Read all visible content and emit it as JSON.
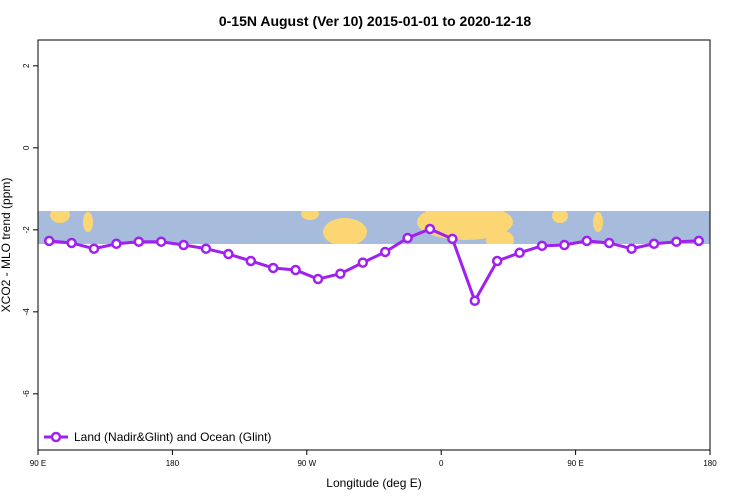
{
  "chart_data": {
    "type": "line",
    "title": "0-15N August (Ver 10)   2015-01-01 to 2020-12-18",
    "xlabel": "Longitude (deg E)",
    "ylabel": "XCO2 - MLO trend (ppm)",
    "x": [
      97.5,
      112.5,
      127.5,
      142.5,
      157.5,
      172.5,
      187.5,
      202.5,
      217.5,
      232.5,
      247.5,
      262.5,
      277.5,
      292.5,
      307.5,
      322.5,
      337.5,
      352.5,
      367.5,
      382.5,
      397.5,
      412.5,
      427.5,
      442.5,
      457.5,
      472.5,
      487.5,
      502.5,
      517.5,
      532.5
    ],
    "series": [
      {
        "name": "Land (Nadir&Glint) and Ocean (Glint)",
        "color": "#a020f0",
        "values": [
          -2.27,
          -2.32,
          -2.46,
          -2.34,
          -2.29,
          -2.29,
          -2.37,
          -2.46,
          -2.59,
          -2.76,
          -2.93,
          -2.98,
          -3.2,
          -3.07,
          -2.8,
          -2.54,
          -2.2,
          -1.98,
          -2.22,
          -3.73,
          -2.76,
          -2.56,
          -2.39,
          -2.37,
          -2.27,
          -2.32,
          -2.46,
          -2.34,
          -2.29,
          -2.27
        ]
      }
    ],
    "xlim": [
      90,
      540
    ],
    "ylim": [
      -7.37,
      2.63
    ],
    "xticks": [
      {
        "value": 90,
        "label": "90 E"
      },
      180,
      {
        "value": 270,
        "label": "90 W"
      },
      {
        "value": 360,
        "label": "0"
      },
      {
        "value": 450,
        "label": "90 E"
      },
      {
        "value": 540,
        "label": "180"
      }
    ],
    "yticks": [
      2,
      0,
      -2,
      -4,
      -6
    ],
    "legend": "bottom-left"
  }
}
